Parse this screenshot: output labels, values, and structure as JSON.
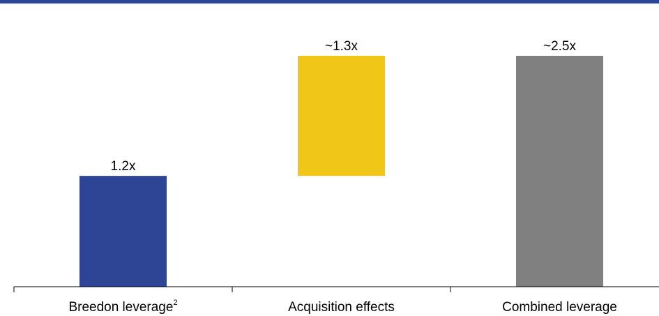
{
  "header_rule_color": "#2e4494",
  "chart_data": {
    "type": "bar",
    "subtype": "waterfall",
    "title": "",
    "xlabel": "",
    "ylabel": "",
    "categories": [
      {
        "label": "Breedon leverage",
        "superscript": "2"
      },
      {
        "label": "Acquisition effects",
        "superscript": ""
      },
      {
        "label": "Combined leverage",
        "superscript": ""
      }
    ],
    "bars": [
      {
        "start": 0,
        "end": 1.2,
        "data_label": "1.2x",
        "color": "#2e4494"
      },
      {
        "start": 1.2,
        "end": 2.5,
        "data_label": "~1.3x",
        "color": "#f0c619"
      },
      {
        "start": 0,
        "end": 2.5,
        "data_label": "~2.5x",
        "color": "#808080"
      }
    ],
    "ylim": [
      0,
      2.5
    ],
    "grid": false,
    "legend": "none"
  }
}
